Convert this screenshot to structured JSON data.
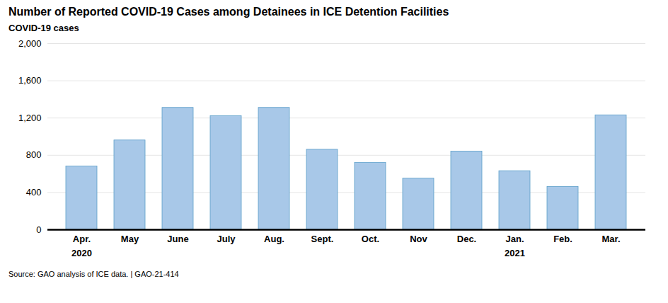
{
  "chart_data": {
    "type": "bar",
    "title": "Number of Reported COVID-19 Cases among Detainees in ICE Detention Facilities",
    "ylabel": "COVID-19 cases",
    "categories": [
      "Apr.",
      "May",
      "June",
      "July",
      "Aug.",
      "Sept.",
      "Oct.",
      "Nov",
      "Dec.",
      "Jan.",
      "Feb.",
      "Mar."
    ],
    "values": [
      680,
      960,
      1310,
      1220,
      1310,
      860,
      720,
      550,
      840,
      630,
      460,
      1230
    ],
    "color": "#a8c8e8",
    "ylim": [
      0,
      2000
    ],
    "yticks": [
      0,
      400,
      800,
      {
        "value": 1200,
        "label": "1,200"
      },
      {
        "value": 1600,
        "label": "1,600"
      },
      {
        "value": 2000,
        "label": "2,000"
      }
    ],
    "grid": true,
    "annotations": [
      {
        "text": "2020",
        "x": "Apr."
      },
      {
        "text": "2021",
        "x": "Jan."
      }
    ],
    "source": "Source: GAO analysis of ICE data.  |  GAO-21-414"
  }
}
